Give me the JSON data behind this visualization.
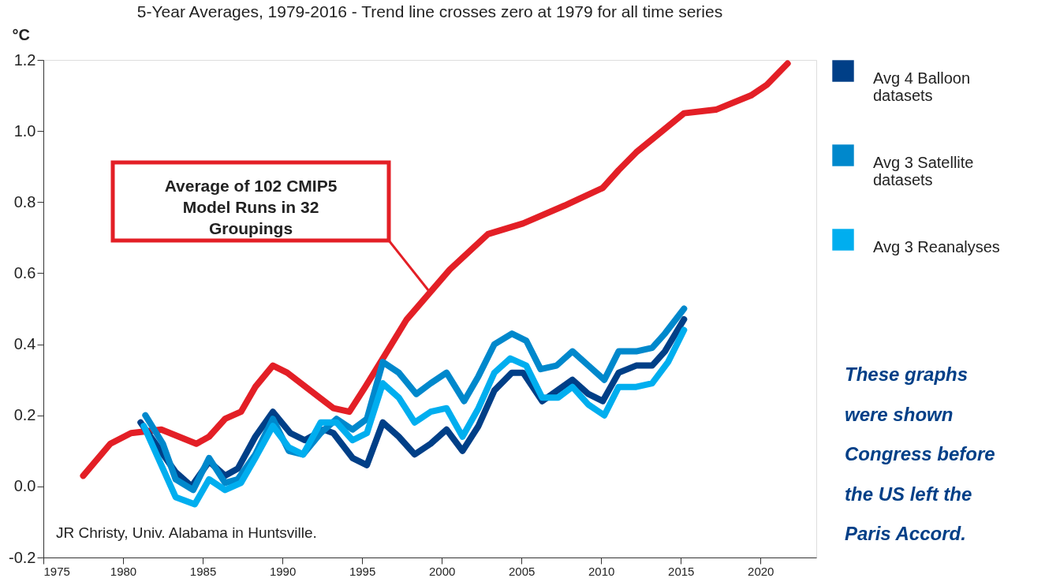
{
  "chart_data": {
    "type": "line",
    "title": "5-Year Averages, 1979-2016 - Trend line crosses zero at 1979 for all time series",
    "ylabel": "°C",
    "xlim": [
      1975,
      2023.5
    ],
    "xticks": [
      1975,
      1980,
      1985,
      1990,
      1995,
      2000,
      2005,
      2010,
      2015,
      2020
    ],
    "ylim": [
      -0.2,
      1.2
    ],
    "yticks": [
      -0.2,
      {
        "value": 0,
        "label": "0.0"
      },
      0.2,
      0.4,
      0.6,
      0.8,
      {
        "value": 1,
        "label": "1.0"
      },
      1.2
    ],
    "grid": false,
    "legend": "right",
    "marker": "none",
    "line_style": "solid",
    "series": [
      {
        "color": "#e31f26",
        "x": [
          1977.5,
          1979.2,
          1980.5,
          1982.4,
          1983.5,
          1984.6,
          1985.4,
          1986.4,
          1987.4,
          1988.3,
          1989.4,
          1990.3,
          1993.2,
          1994.2,
          1995.2,
          1996.3,
          1997.8,
          2000.5,
          2002.9,
          2005.1,
          2007.7,
          2010.1,
          2011.1,
          2012.2,
          2015.2,
          2017.2,
          2019.4,
          2020.4,
          2021.7
        ],
        "values": [
          0.03,
          0.12,
          0.15,
          0.16,
          0.14,
          0.12,
          0.14,
          0.19,
          0.21,
          0.28,
          0.34,
          0.32,
          0.22,
          0.21,
          0.28,
          0.36,
          0.47,
          0.61,
          0.71,
          0.74,
          0.79,
          0.84,
          0.89,
          0.94,
          1.05,
          1.06,
          1.1,
          1.13,
          1.19
        ]
      },
      {
        "name": "Avg 4 Balloon datasets",
        "color": "#003f87",
        "x": [
          1981.1,
          1983.3,
          1984.3,
          1985.4,
          1986.4,
          1987.2,
          1988.3,
          1989.4,
          1990.5,
          1991.4,
          1992.6,
          1993.2,
          1994.4,
          1995.3,
          1996.3,
          1997.3,
          1998.3,
          1999.3,
          2000.3,
          2001.3,
          2002.3,
          2003.3,
          2004.4,
          2005.1,
          2006.3,
          2008.2,
          2009.2,
          2010.1,
          2011.1,
          2012.2,
          2013.2,
          2014.0,
          2015.2
        ],
        "values": [
          0.18,
          0.04,
          0.0,
          0.07,
          0.03,
          0.05,
          0.14,
          0.21,
          0.15,
          0.13,
          0.16,
          0.15,
          0.08,
          0.06,
          0.18,
          0.14,
          0.09,
          0.12,
          0.16,
          0.1,
          0.17,
          0.27,
          0.32,
          0.32,
          0.24,
          0.3,
          0.26,
          0.24,
          0.32,
          0.34,
          0.34,
          0.38,
          0.47
        ]
      },
      {
        "name": "Avg 3 Satellite datasets",
        "color": "#0088cc",
        "x": [
          1981.4,
          1982.5,
          1983.3,
          1984.4,
          1985.4,
          1986.4,
          1987.2,
          1988.3,
          1989.4,
          1990.4,
          1991.3,
          1992.4,
          1993.4,
          1994.4,
          1995.3,
          1996.3,
          1997.3,
          1998.4,
          1999.3,
          2000.3,
          2001.4,
          2002.3,
          2003.3,
          2004.4,
          2005.3,
          2006.2,
          2007.2,
          2008.2,
          2009.2,
          2010.2,
          2011.1,
          2012.2,
          2013.2,
          2014.0,
          2015.2
        ],
        "values": [
          0.2,
          0.12,
          0.02,
          -0.01,
          0.08,
          0.01,
          0.02,
          0.09,
          0.19,
          0.1,
          0.09,
          0.15,
          0.19,
          0.16,
          0.19,
          0.35,
          0.32,
          0.26,
          0.29,
          0.32,
          0.24,
          0.31,
          0.4,
          0.43,
          0.41,
          0.33,
          0.34,
          0.38,
          0.34,
          0.3,
          0.38,
          0.38,
          0.39,
          0.43,
          0.5
        ]
      },
      {
        "name": "Avg 3 Reanalyses",
        "color": "#00aeef",
        "x": [
          1981.3,
          1983.3,
          1984.5,
          1985.4,
          1986.4,
          1987.4,
          1988.3,
          1989.4,
          1990.4,
          1991.3,
          1992.4,
          1993.4,
          1994.4,
          1995.3,
          1996.3,
          1997.3,
          1998.3,
          1999.3,
          2000.3,
          2001.3,
          2002.3,
          2003.3,
          2004.3,
          2005.3,
          2006.3,
          2007.3,
          2008.2,
          2009.2,
          2010.2,
          2011.1,
          2012.2,
          2013.2,
          2014.2,
          2015.2
        ],
        "values": [
          0.17,
          -0.03,
          -0.05,
          0.02,
          -0.01,
          0.01,
          0.08,
          0.17,
          0.11,
          0.09,
          0.18,
          0.18,
          0.13,
          0.15,
          0.29,
          0.25,
          0.18,
          0.21,
          0.22,
          0.14,
          0.22,
          0.32,
          0.36,
          0.34,
          0.25,
          0.25,
          0.28,
          0.23,
          0.2,
          0.28,
          0.28,
          0.29,
          0.35,
          0.44
        ]
      }
    ],
    "annotations": [
      "Average of 102 CMIP5 Model Runs in 32 Groupings",
      "JR Christy, Univ. Alabama in Huntsville.",
      "These graphs were shown Congress before the US left the Paris Accord."
    ]
  }
}
